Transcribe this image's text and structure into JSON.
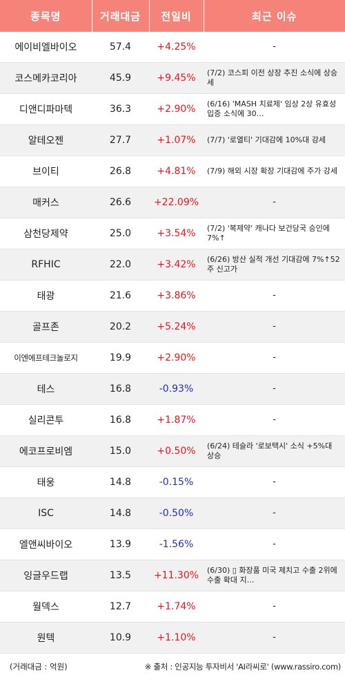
{
  "headers": [
    "종목명",
    "거래대금",
    "전일비",
    "최근 이슈"
  ],
  "rows": [
    {
      "name": "에이비엘바이오",
      "amount": "57.4",
      "change": "+4.25%",
      "direction": "up",
      "issue": "-"
    },
    {
      "name": "코스메카코리아",
      "amount": "45.9",
      "change": "+9.45%",
      "direction": "up",
      "issue": "(7/2) 코스피 이전 상장 추진 소식에 상승세"
    },
    {
      "name": "디앤디파마텍",
      "amount": "36.3",
      "change": "+2.90%",
      "direction": "up",
      "issue": "(6/16) 'MASH 치료제' 임상 2상 유효성 입증 소식에 30…"
    },
    {
      "name": "알테오젠",
      "amount": "27.7",
      "change": "+1.07%",
      "direction": "up",
      "issue": "(7/7) '로열티' 기대감에 10%대 강세"
    },
    {
      "name": "브이티",
      "amount": "26.8",
      "change": "+4.81%",
      "direction": "up",
      "issue": "(7/9) 해외 시장 확장 기대감에 주가 강세"
    },
    {
      "name": "매커스",
      "amount": "26.6",
      "change": "+22.09%",
      "direction": "up",
      "issue": "-"
    },
    {
      "name": "삼천당제약",
      "amount": "25.0",
      "change": "+3.54%",
      "direction": "up",
      "issue": "(7/2) '복제약' 캐나다 보건당국 승인에 7%↑"
    },
    {
      "name": "RFHIC",
      "amount": "22.0",
      "change": "+3.42%",
      "direction": "up",
      "issue": "(6/26) 방산 실적 개선 기대감에 7%↑52주 신고가"
    },
    {
      "name": "태광",
      "amount": "21.6",
      "change": "+3.86%",
      "direction": "up",
      "issue": "-"
    },
    {
      "name": "골프존",
      "amount": "20.2",
      "change": "+5.24%",
      "direction": "up",
      "issue": "-"
    },
    {
      "name": "이엔에프테크놀로지",
      "amount": "19.9",
      "change": "+2.90%",
      "direction": "up",
      "issue": "-",
      "small": true
    },
    {
      "name": "테스",
      "amount": "16.8",
      "change": "-0.93%",
      "direction": "down",
      "issue": "-"
    },
    {
      "name": "실리콘투",
      "amount": "16.8",
      "change": "+1.87%",
      "direction": "up",
      "issue": "-"
    },
    {
      "name": "에코프로비엠",
      "amount": "15.0",
      "change": "+0.50%",
      "direction": "up",
      "issue": "(6/24) 테슬라 '로보택시' 소식 +5%대 상승"
    },
    {
      "name": "태웅",
      "amount": "14.8",
      "change": "-0.15%",
      "direction": "down",
      "issue": "-"
    },
    {
      "name": "ISC",
      "amount": "14.8",
      "change": "-0.50%",
      "direction": "down",
      "issue": "-"
    },
    {
      "name": "엘앤씨바이오",
      "amount": "13.9",
      "change": "-1.56%",
      "direction": "down",
      "issue": "-"
    },
    {
      "name": "잉글우드랩",
      "amount": "13.5",
      "change": "+11.30%",
      "direction": "up",
      "issue": "(6/30) ▯ 화장품 미국 제치고 수출 2위에 수출 확대 지…"
    },
    {
      "name": "월덱스",
      "amount": "12.7",
      "change": "+1.74%",
      "direction": "up",
      "issue": "-"
    },
    {
      "name": "원텍",
      "amount": "10.9",
      "change": "+1.10%",
      "direction": "up",
      "issue": "-"
    }
  ],
  "footer": {
    "left": "(거래대금 : 억원)",
    "right": "※ 출처 : 인공지능 투자비서 'AI라씨로' (www.rassiro.com)"
  },
  "colors": {
    "header_bg": "#f6837a",
    "up": "#e8161d",
    "down": "#1f2fb8",
    "stripe": "#f1f1f1"
  }
}
